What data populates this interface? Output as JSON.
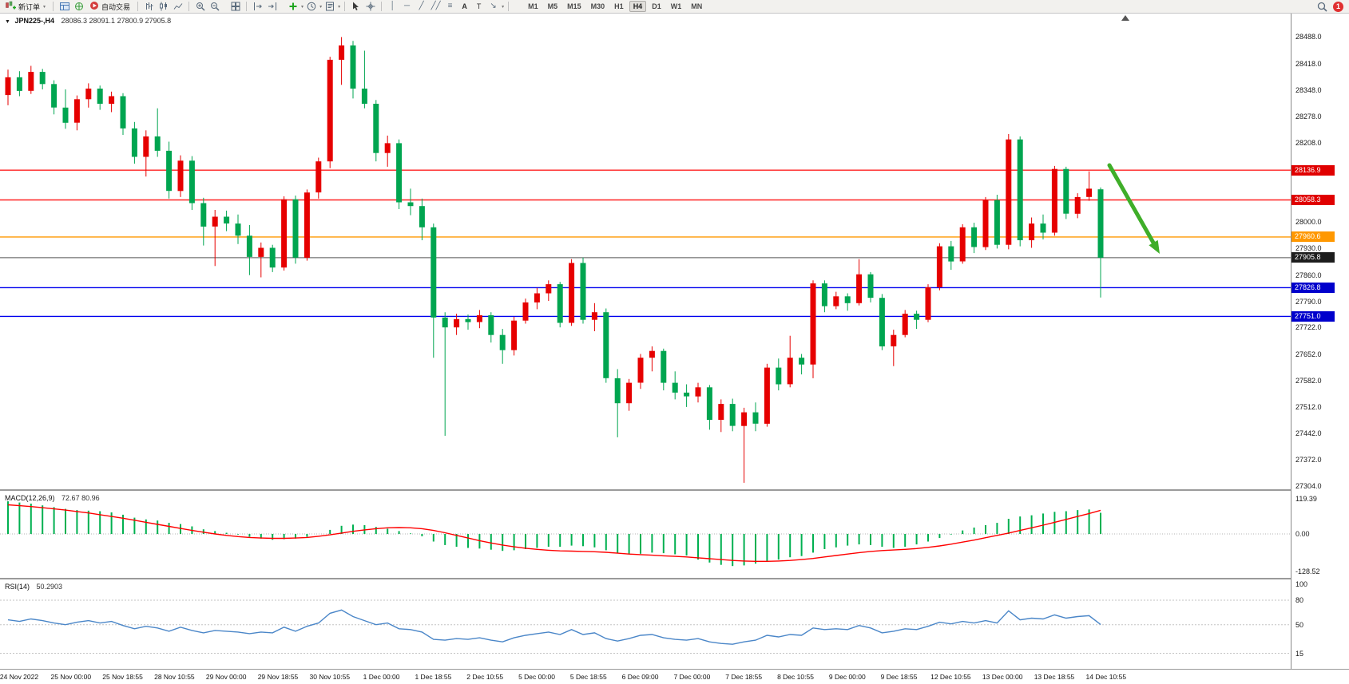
{
  "toolbar": {
    "new_order_label": "新订单",
    "auto_trading_label": "自动交易",
    "text_tool_a": "A",
    "text_tool_t": "T",
    "timeframes": [
      "M1",
      "M5",
      "M15",
      "M30",
      "H1",
      "H4",
      "D1",
      "W1",
      "MN"
    ],
    "active_timeframe": "H4",
    "notification_count": "1"
  },
  "chart": {
    "symbol_label": "JPN225-,H4",
    "ohlc_label": "28086.3 28091.1 27800.9 27905.8",
    "colors": {
      "up": "#e60000",
      "down": "#00a550",
      "macd_histogram": "#00b050",
      "macd_signal": "#ff0000",
      "rsi_line": "#4a86c8",
      "arrow": "#3fae29"
    },
    "levels": [
      {
        "price": 28136.9,
        "label": "28136.9",
        "line_color": "#ff2020",
        "badge_color": "#e00000"
      },
      {
        "price": 28058.3,
        "label": "28058.3",
        "line_color": "#ff2020",
        "badge_color": "#e00000"
      },
      {
        "price": 27960.6,
        "label": "27960.6",
        "line_color": "#ff9800",
        "badge_color": "#ff9800"
      },
      {
        "price": 27905.8,
        "label": "27905.8",
        "line_color": "#555555",
        "badge_color": "#1d1d1d",
        "current": true
      },
      {
        "price": 27826.8,
        "label": "27826.8",
        "line_color": "#0000ee",
        "badge_color": "#0000cc"
      },
      {
        "price": 27751.0,
        "label": "27751.0",
        "line_color": "#0000ee",
        "badge_color": "#0000cc"
      }
    ],
    "price_axis_ticks": [
      "28488.0",
      "28418.0",
      "28348.0",
      "28278.0",
      "28208.0",
      "28000.0",
      "27930.0",
      "27860.0",
      "27790.0",
      "27722.0",
      "27652.0",
      "27582.0",
      "27512.0",
      "27442.0",
      "27372.0",
      "27304.0"
    ]
  },
  "macd": {
    "label": "MACD(12,26,9)",
    "values_label": "72.67 80.96",
    "axis": [
      {
        "label": "119.39",
        "value": 119.39
      },
      {
        "label": "0.00",
        "value": 0
      },
      {
        "label": "-128.52",
        "value": -128.52
      }
    ]
  },
  "rsi": {
    "label": "RSI(14)",
    "value_label": "50.2903",
    "axis": [
      {
        "label": "100",
        "value": 100
      },
      {
        "label": "80",
        "value": 80
      },
      {
        "label": "50",
        "value": 50
      },
      {
        "label": "15",
        "value": 15
      }
    ],
    "guide_levels": [
      80,
      50,
      15
    ]
  },
  "dates": [
    "24 Nov 2022",
    "25 Nov 00:00",
    "25 Nov 18:55",
    "28 Nov 10:55",
    "29 Nov 00:00",
    "29 Nov 18:55",
    "30 Nov 10:55",
    "1 Dec 00:00",
    "1 Dec 18:55",
    "2 Dec 10:55",
    "5 Dec 00:00",
    "5 Dec 18:55",
    "6 Dec 09:00",
    "7 Dec 00:00",
    "7 Dec 18:55",
    "8 Dec 10:55",
    "9 Dec 00:00",
    "9 Dec 18:55",
    "12 Dec 10:55",
    "13 Dec 00:00",
    "13 Dec 18:55",
    "14 Dec 10:55"
  ],
  "chart_data": {
    "type": "candlestick",
    "symbol": "JPN225-",
    "timeframe": "H4",
    "price_axis_range": [
      27304.0,
      28488.0
    ],
    "candles_ohlc": [
      [
        28335,
        28402,
        28308,
        28382
      ],
      [
        28382,
        28398,
        28332,
        28346
      ],
      [
        28346,
        28412,
        28338,
        28396
      ],
      [
        28396,
        28404,
        28350,
        28364
      ],
      [
        28364,
        28374,
        28284,
        28302
      ],
      [
        28302,
        28350,
        28246,
        28262
      ],
      [
        28262,
        28334,
        28242,
        28324
      ],
      [
        28324,
        28366,
        28302,
        28352
      ],
      [
        28352,
        28360,
        28296,
        28312
      ],
      [
        28312,
        28344,
        28290,
        28332
      ],
      [
        28332,
        28340,
        28230,
        28247
      ],
      [
        28247,
        28264,
        28154,
        28172
      ],
      [
        28172,
        28242,
        28120,
        28226
      ],
      [
        28226,
        28300,
        28172,
        28188
      ],
      [
        28188,
        28212,
        28062,
        28082
      ],
      [
        28082,
        28176,
        28066,
        28162
      ],
      [
        28162,
        28174,
        28032,
        28050
      ],
      [
        28050,
        28064,
        27938,
        27988
      ],
      [
        27988,
        28032,
        27884,
        28014
      ],
      [
        28014,
        28030,
        27976,
        27996
      ],
      [
        27996,
        28020,
        27942,
        27964
      ],
      [
        27964,
        27992,
        27860,
        27908
      ],
      [
        27908,
        27946,
        27854,
        27932
      ],
      [
        27932,
        27940,
        27868,
        27880
      ],
      [
        27880,
        28068,
        27872,
        28060
      ],
      [
        28060,
        28070,
        27890,
        27906
      ],
      [
        27906,
        28086,
        27898,
        28078
      ],
      [
        28078,
        28170,
        28062,
        28160
      ],
      [
        28160,
        28436,
        28142,
        28428
      ],
      [
        28428,
        28488,
        28362,
        28466
      ],
      [
        28466,
        28478,
        28326,
        28352
      ],
      [
        28352,
        28452,
        28300,
        28312
      ],
      [
        28312,
        28322,
        28160,
        28182
      ],
      [
        28182,
        28228,
        28146,
        28208
      ],
      [
        28208,
        28218,
        28034,
        28052
      ],
      [
        28052,
        28088,
        28018,
        28042
      ],
      [
        28042,
        28062,
        27952,
        27986
      ],
      [
        27986,
        27996,
        27642,
        27748
      ],
      [
        27748,
        27762,
        27436,
        27722
      ],
      [
        27722,
        27758,
        27702,
        27744
      ],
      [
        27744,
        27756,
        27716,
        27736
      ],
      [
        27736,
        27768,
        27720,
        27754
      ],
      [
        27754,
        27762,
        27682,
        27702
      ],
      [
        27702,
        27718,
        27626,
        27662
      ],
      [
        27662,
        27750,
        27648,
        27740
      ],
      [
        27740,
        27798,
        27732,
        27788
      ],
      [
        27788,
        27826,
        27770,
        27812
      ],
      [
        27812,
        27846,
        27792,
        27836
      ],
      [
        27836,
        27842,
        27722,
        27734
      ],
      [
        27734,
        27902,
        27726,
        27892
      ],
      [
        27892,
        27906,
        27732,
        27742
      ],
      [
        27742,
        27786,
        27712,
        27762
      ],
      [
        27762,
        27772,
        27576,
        27588
      ],
      [
        27588,
        27612,
        27432,
        27522
      ],
      [
        27522,
        27586,
        27502,
        27576
      ],
      [
        27576,
        27652,
        27560,
        27642
      ],
      [
        27642,
        27672,
        27606,
        27660
      ],
      [
        27660,
        27666,
        27556,
        27576
      ],
      [
        27576,
        27606,
        27532,
        27550
      ],
      [
        27550,
        27572,
        27512,
        27540
      ],
      [
        27540,
        27576,
        27524,
        27564
      ],
      [
        27564,
        27570,
        27452,
        27478
      ],
      [
        27478,
        27532,
        27446,
        27520
      ],
      [
        27520,
        27534,
        27448,
        27462
      ],
      [
        27462,
        27510,
        27312,
        27498
      ],
      [
        27498,
        27524,
        27448,
        27468
      ],
      [
        27468,
        27626,
        27460,
        27616
      ],
      [
        27616,
        27640,
        27556,
        27572
      ],
      [
        27572,
        27700,
        27564,
        27642
      ],
      [
        27642,
        27652,
        27598,
        27624
      ],
      [
        27624,
        27846,
        27588,
        27838
      ],
      [
        27838,
        27846,
        27762,
        27778
      ],
      [
        27778,
        27816,
        27770,
        27804
      ],
      [
        27804,
        27812,
        27766,
        27786
      ],
      [
        27786,
        27902,
        27780,
        27862
      ],
      [
        27862,
        27868,
        27788,
        27800
      ],
      [
        27800,
        27810,
        27662,
        27672
      ],
      [
        27672,
        27716,
        27620,
        27702
      ],
      [
        27702,
        27768,
        27696,
        27758
      ],
      [
        27758,
        27766,
        27718,
        27742
      ],
      [
        27742,
        27836,
        27736,
        27828
      ],
      [
        27828,
        27944,
        27820,
        27936
      ],
      [
        27936,
        27950,
        27874,
        27896
      ],
      [
        27896,
        27994,
        27890,
        27986
      ],
      [
        27986,
        27998,
        27918,
        27934
      ],
      [
        27934,
        28066,
        27926,
        28058
      ],
      [
        28058,
        28072,
        27930,
        27940
      ],
      [
        27940,
        28232,
        27928,
        28218
      ],
      [
        28218,
        28226,
        27936,
        27952
      ],
      [
        27952,
        28012,
        27932,
        27996
      ],
      [
        27996,
        28020,
        27954,
        27972
      ],
      [
        27972,
        28148,
        27964,
        28140
      ],
      [
        28140,
        28146,
        28008,
        28022
      ],
      [
        28022,
        28076,
        28010,
        28066
      ],
      [
        28066,
        28134,
        28056,
        28088
      ],
      [
        28086.3,
        28091.1,
        27800.9,
        27905.8
      ]
    ],
    "macd_histogram": [
      112,
      108,
      104,
      98,
      92,
      86,
      82,
      80,
      78,
      74,
      66,
      56,
      50,
      46,
      38,
      34,
      26,
      16,
      10,
      4,
      -2,
      -10,
      -16,
      -20,
      -18,
      -16,
      -10,
      0,
      14,
      28,
      32,
      30,
      24,
      18,
      10,
      2,
      -8,
      -26,
      -38,
      -44,
      -48,
      -50,
      -54,
      -58,
      -56,
      -52,
      -48,
      -44,
      -44,
      -40,
      -42,
      -46,
      -56,
      -66,
      -70,
      -68,
      -64,
      -66,
      -70,
      -74,
      -88,
      -98,
      -106,
      -110,
      -108,
      -102,
      -94,
      -88,
      -80,
      -76,
      -64,
      -52,
      -46,
      -40,
      -36,
      -38,
      -44,
      -48,
      -44,
      -36,
      -26,
      -14,
      -2,
      12,
      22,
      30,
      38,
      52,
      60,
      64,
      70,
      76,
      78,
      82,
      84,
      72.67
    ],
    "macd_signal": [
      100,
      97,
      94,
      90,
      86,
      82,
      77,
      72,
      66,
      60,
      54,
      47,
      40,
      33,
      26,
      19,
      12,
      6,
      0,
      -5,
      -9,
      -12,
      -14,
      -15,
      -15,
      -14,
      -12,
      -8,
      -3,
      3,
      9,
      14,
      18,
      21,
      22,
      21,
      18,
      12,
      4,
      -5,
      -14,
      -23,
      -31,
      -38,
      -44,
      -49,
      -53,
      -56,
      -58,
      -59,
      -60,
      -61,
      -63,
      -66,
      -69,
      -71,
      -73,
      -75,
      -77,
      -79,
      -82,
      -85,
      -88,
      -91,
      -93,
      -94,
      -94,
      -93,
      -91,
      -88,
      -84,
      -79,
      -74,
      -69,
      -64,
      -60,
      -57,
      -55,
      -53,
      -50,
      -46,
      -41,
      -35,
      -28,
      -21,
      -13,
      -5,
      3,
      12,
      21,
      30,
      40,
      50,
      60,
      70,
      80.96
    ],
    "rsi": [
      56,
      54,
      57,
      55,
      52,
      50,
      53,
      55,
      52,
      54,
      49,
      45,
      48,
      46,
      42,
      47,
      43,
      40,
      43,
      42,
      41,
      39,
      41,
      40,
      47,
      42,
      48,
      52,
      64,
      68,
      60,
      55,
      50,
      52,
      45,
      44,
      41,
      32,
      31,
      33,
      32,
      34,
      31,
      29,
      34,
      37,
      39,
      41,
      38,
      44,
      38,
      40,
      33,
      30,
      33,
      37,
      38,
      34,
      32,
      31,
      33,
      29,
      27,
      26,
      29,
      31,
      37,
      35,
      38,
      37,
      46,
      44,
      45,
      44,
      49,
      46,
      40,
      42,
      45,
      44,
      48,
      53,
      51,
      54,
      52,
      55,
      52,
      67,
      56,
      58,
      57,
      62,
      58,
      60,
      61,
      50.29
    ]
  }
}
